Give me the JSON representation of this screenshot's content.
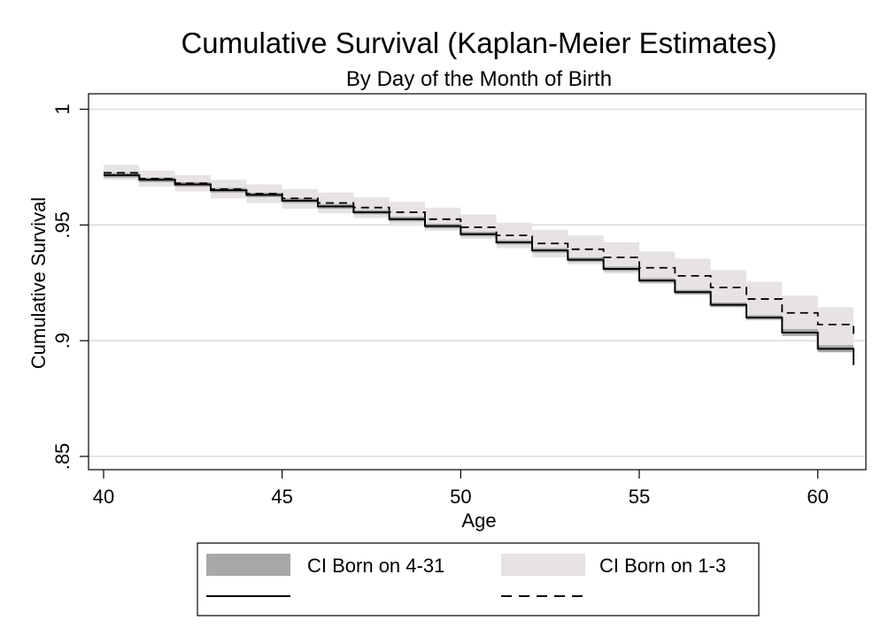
{
  "chart_data": {
    "type": "line",
    "title": "Cumulative Survival (Kaplan-Meier Estimates)",
    "subtitle": "By Day of the Month of Birth",
    "xlabel": "Age",
    "ylabel": "Cumulative Survival",
    "xlim": [
      40,
      61
    ],
    "ylim": [
      0.845,
      1.0
    ],
    "xticks": [
      40,
      45,
      50,
      55,
      60
    ],
    "xtick_labels": [
      "40",
      "45",
      "50",
      "55",
      "60"
    ],
    "yticks": [
      0.85,
      0.9,
      0.95,
      1
    ],
    "ytick_labels": [
      ".85",
      ".9",
      ".95",
      "1"
    ],
    "grid": true,
    "legend_position": "bottom",
    "x": [
      40,
      41,
      42,
      43,
      44,
      45,
      46,
      47,
      48,
      49,
      50,
      51,
      52,
      53,
      54,
      55,
      56,
      57,
      58,
      59,
      60,
      61
    ],
    "series": [
      {
        "name": "Born on 4-31",
        "style": "solid",
        "values": [
          0.9715,
          0.9695,
          0.9675,
          0.965,
          0.963,
          0.9605,
          0.958,
          0.9555,
          0.9525,
          0.9495,
          0.946,
          0.9425,
          0.939,
          0.935,
          0.931,
          0.926,
          0.921,
          0.9155,
          0.91,
          0.9035,
          0.8965,
          0.8895
        ],
        "ci_lower": [
          0.9705,
          0.9685,
          0.9665,
          0.964,
          0.962,
          0.9595,
          0.957,
          0.9545,
          0.9515,
          0.9485,
          0.945,
          0.9415,
          0.938,
          0.934,
          0.93,
          0.925,
          0.92,
          0.9145,
          0.909,
          0.902,
          0.895,
          0.888
        ],
        "ci_upper": [
          0.9725,
          0.9705,
          0.9685,
          0.966,
          0.964,
          0.9615,
          0.959,
          0.9565,
          0.9535,
          0.9505,
          0.947,
          0.9435,
          0.94,
          0.936,
          0.932,
          0.927,
          0.922,
          0.9165,
          0.911,
          0.905,
          0.898,
          0.891
        ]
      },
      {
        "name": "Born on 1-3",
        "style": "dashed",
        "values": [
          0.9725,
          0.97,
          0.968,
          0.9655,
          0.9635,
          0.9615,
          0.9595,
          0.9575,
          0.9555,
          0.9525,
          0.949,
          0.9455,
          0.942,
          0.9395,
          0.936,
          0.9315,
          0.928,
          0.923,
          0.918,
          0.912,
          0.907,
          0.902
        ],
        "ci_lower": [
          0.9695,
          0.9665,
          0.9645,
          0.9615,
          0.9595,
          0.957,
          0.955,
          0.953,
          0.9505,
          0.9475,
          0.944,
          0.94,
          0.936,
          0.933,
          0.929,
          0.9245,
          0.92,
          0.9145,
          0.909,
          0.902,
          0.896,
          0.886
        ],
        "ci_upper": [
          0.976,
          0.9735,
          0.9715,
          0.9695,
          0.9675,
          0.9655,
          0.964,
          0.962,
          0.96,
          0.9575,
          0.9545,
          0.951,
          0.948,
          0.9455,
          0.9425,
          0.9385,
          0.9355,
          0.9305,
          0.9255,
          0.9195,
          0.9145,
          0.907
        ]
      }
    ],
    "legend": [
      {
        "label": "CI Born on 4-31",
        "swatch": "band",
        "color": "#a8a8a8"
      },
      {
        "label": "",
        "swatch": "solid-line",
        "color": "#000000"
      },
      {
        "label": "CI Born on 1-3",
        "swatch": "band",
        "color": "#e6e2e6"
      },
      {
        "label": "",
        "swatch": "dashed-line",
        "color": "#000000"
      }
    ],
    "colors": {
      "ci_4_31": "#a8a8a8",
      "ci_1_3": "#e6e2e6",
      "line": "#000000",
      "grid": "#dcdcdc"
    }
  }
}
